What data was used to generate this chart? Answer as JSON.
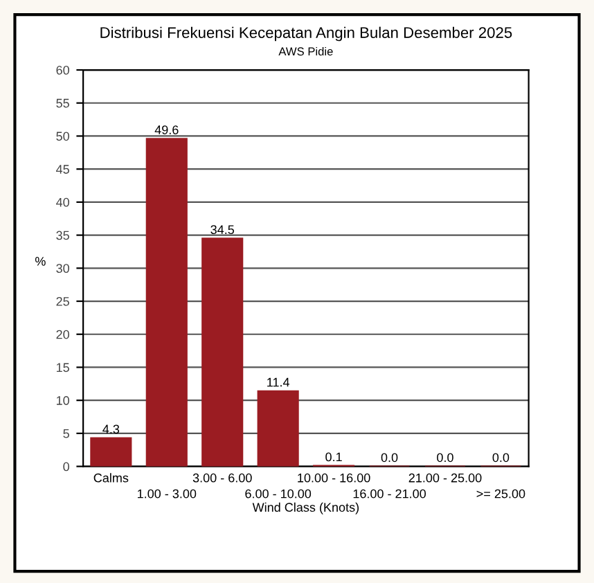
{
  "chart_data": {
    "type": "bar",
    "title": "Distribusi Frekuensi Kecepatan Angin Bulan Desember 2025",
    "subtitle": "AWS Pidie",
    "xlabel": "Wind Class (Knots)",
    "ylabel": "%",
    "categories": [
      "Calms",
      "1.00 - 3.00",
      "3.00 - 6.00",
      "6.00 - 10.00",
      "10.00 - 16.00",
      "16.00 - 21.00",
      "21.00 - 25.00",
      ">= 25.00"
    ],
    "values": [
      4.3,
      49.6,
      34.5,
      11.4,
      0.1,
      0.0,
      0.0,
      0.0
    ],
    "color": "#9b1c22",
    "ylim": [
      0,
      60
    ],
    "yticks": [
      0,
      5,
      10,
      15,
      20,
      25,
      30,
      35,
      40,
      45,
      50,
      55,
      60
    ],
    "grid": "y",
    "value_labels": [
      "4.3",
      "49.6",
      "34.5",
      "11.4",
      "0.1",
      "0.0",
      "0.0",
      "0.0"
    ]
  }
}
